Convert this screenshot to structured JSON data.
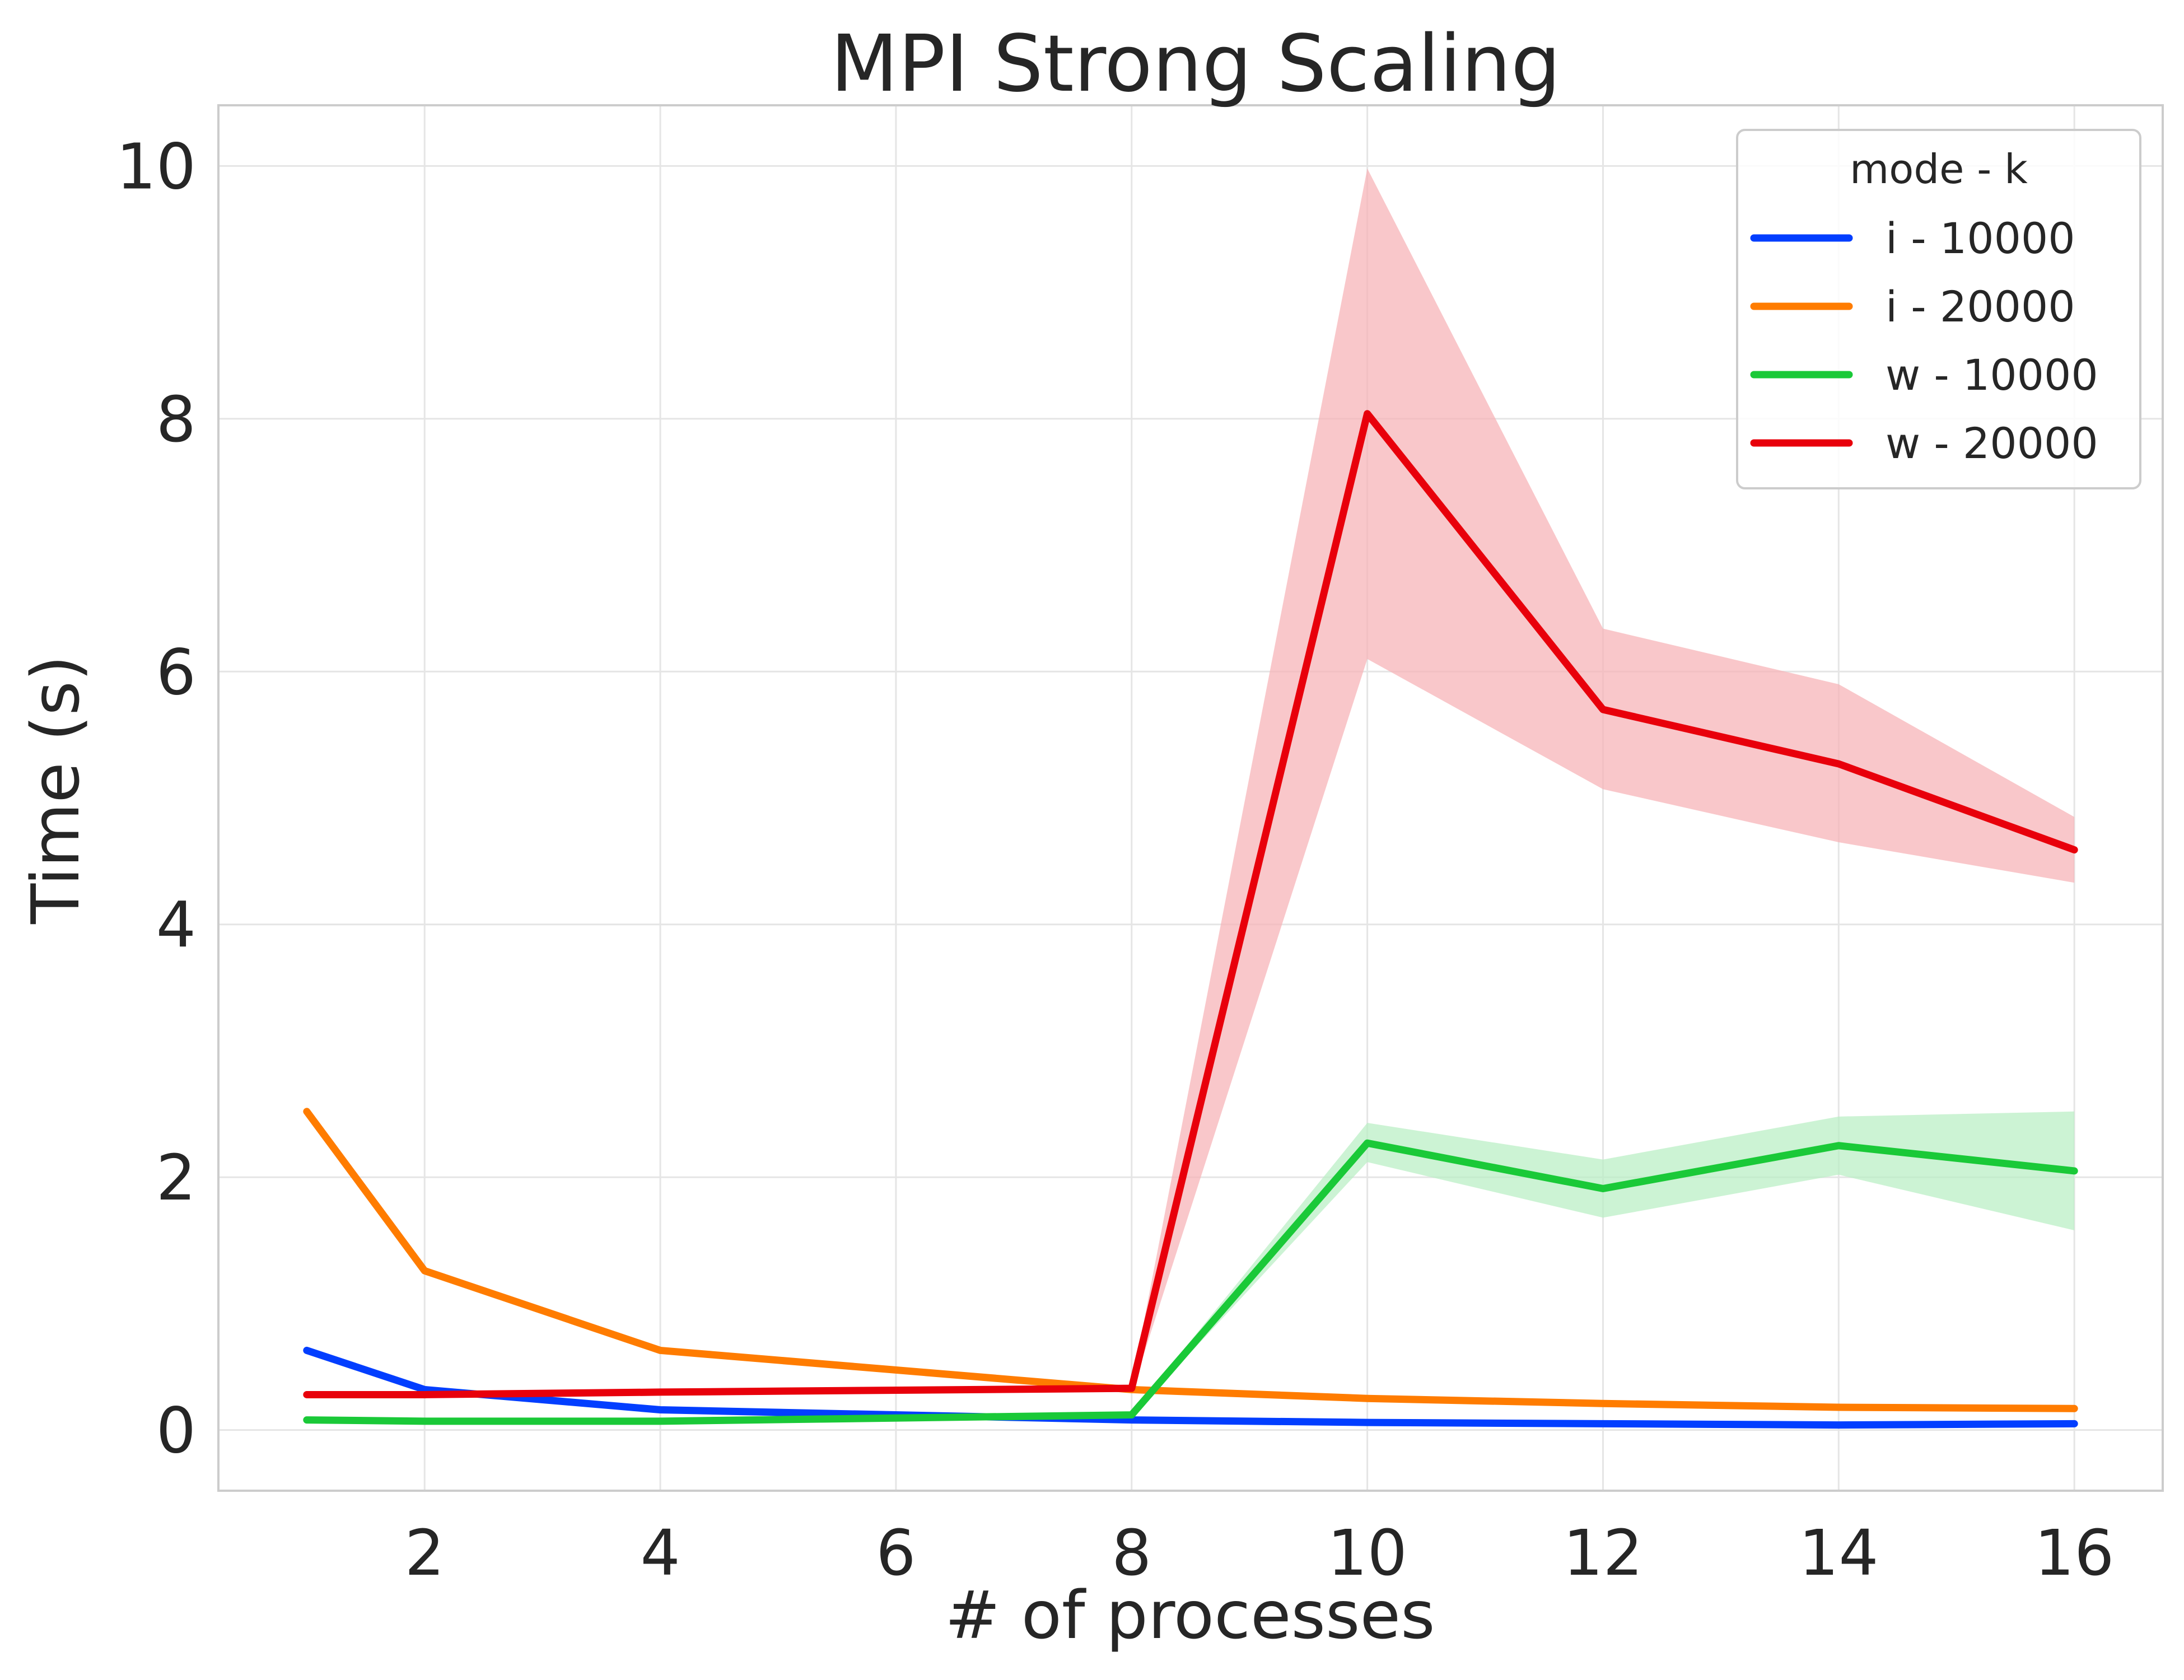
{
  "chart_data": {
    "type": "line",
    "title": "MPI Strong Scaling",
    "xlabel": "# of processes",
    "ylabel": "Time (s)",
    "xlim": [
      0.25,
      16.75
    ],
    "ylim": [
      -0.48,
      10.48
    ],
    "xticks": [
      2,
      4,
      6,
      8,
      10,
      12,
      14,
      16
    ],
    "yticks": [
      0,
      2,
      4,
      6,
      8,
      10
    ],
    "grid": true,
    "legend": {
      "title": "mode - k",
      "placement": "top-right"
    },
    "x": [
      1,
      2,
      4,
      8,
      10,
      12,
      14,
      16
    ],
    "series": [
      {
        "name": "i - 10000",
        "color": "#023eff",
        "values": [
          0.63,
          0.32,
          0.16,
          0.08,
          0.06,
          0.05,
          0.04,
          0.05
        ]
      },
      {
        "name": "i - 20000",
        "color": "#ff7c00",
        "values": [
          2.52,
          1.26,
          0.63,
          0.32,
          0.25,
          0.21,
          0.18,
          0.17
        ]
      },
      {
        "name": "w - 10000",
        "color": "#1ac938",
        "values": [
          0.08,
          0.07,
          0.07,
          0.12,
          2.27,
          1.91,
          2.25,
          2.05
        ],
        "band_low": [
          0.08,
          0.07,
          0.07,
          0.11,
          2.12,
          1.68,
          2.02,
          1.58
        ],
        "band_high": [
          0.08,
          0.07,
          0.07,
          0.13,
          2.43,
          2.14,
          2.48,
          2.52
        ],
        "band_color": "#b8eec3"
      },
      {
        "name": "w - 20000",
        "color": "#e8000b",
        "values": [
          0.28,
          0.28,
          0.3,
          0.33,
          8.04,
          5.7,
          5.27,
          4.59
        ],
        "band_low": [
          0.28,
          0.28,
          0.3,
          0.3,
          6.1,
          5.07,
          4.65,
          4.33
        ],
        "band_high": [
          0.28,
          0.28,
          0.3,
          0.36,
          9.98,
          6.34,
          5.9,
          4.85
        ],
        "band_color": "#f6b1b5"
      }
    ]
  }
}
